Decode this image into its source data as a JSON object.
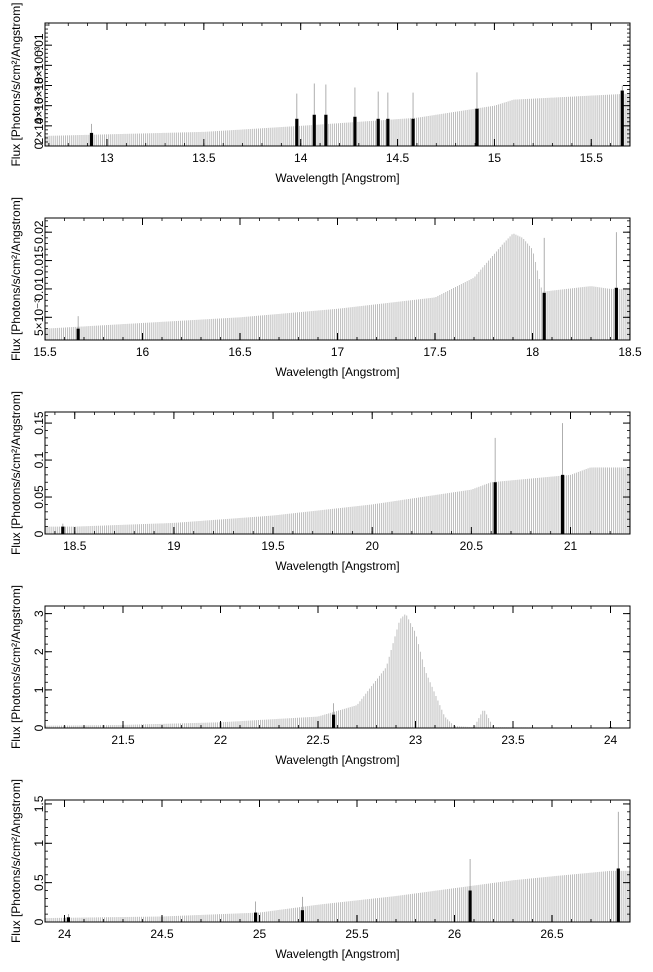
{
  "chart_data": [
    {
      "type": "bar",
      "xlabel": "Wavelength [Angstrom]",
      "ylabel": "Flux [Photons/s/cm²/Angstrom]",
      "xlim": [
        12.68,
        15.7
      ],
      "ylim": [
        0,
        0.0122
      ],
      "xticks": [
        13,
        13.5,
        14,
        14.5,
        15,
        15.5
      ],
      "yticks": [
        0,
        0.002,
        0.004,
        0.006,
        0.008,
        0.01
      ],
      "ytick_labels": [
        "0",
        "2×10⁻³",
        "4×10⁻³",
        "6×10⁻³",
        "8×10⁻³",
        "0.01"
      ],
      "continuum": [
        [
          12.68,
          0.001
        ],
        [
          13.5,
          0.0014
        ],
        [
          14.0,
          0.002
        ],
        [
          14.6,
          0.0028
        ],
        [
          15.0,
          0.004
        ],
        [
          15.1,
          0.0046
        ],
        [
          15.5,
          0.005
        ],
        [
          15.7,
          0.0052
        ]
      ],
      "lines": [
        {
          "x": 12.92,
          "value": 0.0013,
          "err": 0.0022
        },
        {
          "x": 13.98,
          "value": 0.0027,
          "err": 0.0052
        },
        {
          "x": 14.07,
          "value": 0.0031,
          "err": 0.0062
        },
        {
          "x": 14.13,
          "value": 0.0031,
          "err": 0.0061
        },
        {
          "x": 14.28,
          "value": 0.0029,
          "err": 0.0058
        },
        {
          "x": 14.4,
          "value": 0.0027,
          "err": 0.0054
        },
        {
          "x": 14.45,
          "value": 0.0027,
          "err": 0.0053
        },
        {
          "x": 14.58,
          "value": 0.0027,
          "err": 0.0053
        },
        {
          "x": 14.91,
          "value": 0.0037,
          "err": 0.0073
        },
        {
          "x": 15.66,
          "value": 0.0055,
          "err": 0.006
        }
      ]
    },
    {
      "type": "bar",
      "xlabel": "Wavelength [Angstrom]",
      "ylabel": "Flux [Photons/s/cm²/Angstrom]",
      "xlim": [
        15.5,
        18.5
      ],
      "ylim": [
        0.001,
        0.0225
      ],
      "xticks": [
        15.5,
        16,
        16.5,
        17,
        17.5,
        18,
        18.5
      ],
      "yticks": [
        0.005,
        0.01,
        0.015,
        0.02
      ],
      "ytick_labels": [
        "5×10⁻³",
        "0.01",
        "0.015",
        "0.02"
      ],
      "continuum": [
        [
          15.5,
          0.003
        ],
        [
          16.0,
          0.004
        ],
        [
          16.5,
          0.005
        ],
        [
          17.0,
          0.0065
        ],
        [
          17.5,
          0.0085
        ],
        [
          17.7,
          0.012
        ],
        [
          17.85,
          0.018
        ],
        [
          17.9,
          0.0198
        ],
        [
          17.95,
          0.019
        ],
        [
          18.0,
          0.017
        ],
        [
          18.05,
          0.0095
        ],
        [
          18.3,
          0.0105
        ],
        [
          18.4,
          0.01
        ],
        [
          18.5,
          0.01
        ]
      ],
      "lines": [
        {
          "x": 15.67,
          "value": 0.003,
          "err": 0.0052
        },
        {
          "x": 18.06,
          "value": 0.0093,
          "err": 0.019
        },
        {
          "x": 18.43,
          "value": 0.0102,
          "err": 0.02
        }
      ]
    },
    {
      "type": "bar",
      "xlabel": "Wavelength [Angstrom]",
      "ylabel": "Flux [Photons/s/cm²/Angstrom]",
      "xlim": [
        18.35,
        21.3
      ],
      "ylim": [
        0,
        0.165
      ],
      "xticks": [
        18.5,
        19,
        19.5,
        20,
        20.5,
        21
      ],
      "yticks": [
        0,
        0.05,
        0.1,
        0.15
      ],
      "ytick_labels": [
        "0",
        "0.05",
        "0.1",
        "0.15"
      ],
      "continuum": [
        [
          18.35,
          0.01
        ],
        [
          18.5,
          0.01
        ],
        [
          19.0,
          0.015
        ],
        [
          19.5,
          0.025
        ],
        [
          20.0,
          0.04
        ],
        [
          20.5,
          0.06
        ],
        [
          20.6,
          0.07
        ],
        [
          21.0,
          0.08
        ],
        [
          21.1,
          0.09
        ],
        [
          21.3,
          0.09
        ]
      ],
      "lines": [
        {
          "x": 18.44,
          "value": 0.01,
          "err": 0.014
        },
        {
          "x": 20.62,
          "value": 0.07,
          "err": 0.13
        },
        {
          "x": 20.96,
          "value": 0.08,
          "err": 0.15
        }
      ]
    },
    {
      "type": "bar",
      "xlabel": "Wavelength [Angstrom]",
      "ylabel": "Flux [Photons/s/cm²/Angstrom]",
      "xlim": [
        21.1,
        24.1
      ],
      "ylim": [
        0,
        3.2
      ],
      "xticks": [
        21.5,
        22,
        22.5,
        23,
        23.5,
        24
      ],
      "yticks": [
        0,
        1,
        2,
        3
      ],
      "ytick_labels": [
        "0",
        "1",
        "2",
        "3"
      ],
      "continuum": [
        [
          21.1,
          0.06
        ],
        [
          21.5,
          0.08
        ],
        [
          22.0,
          0.15
        ],
        [
          22.5,
          0.3
        ],
        [
          22.7,
          0.6
        ],
        [
          22.85,
          1.6
        ],
        [
          22.92,
          2.85
        ],
        [
          22.95,
          3.0
        ],
        [
          23.0,
          2.5
        ],
        [
          23.05,
          1.5
        ],
        [
          23.15,
          0.3
        ],
        [
          23.2,
          0.05
        ],
        [
          23.3,
          0.02
        ],
        [
          23.35,
          0.5
        ],
        [
          23.4,
          0.02
        ],
        [
          24.1,
          0.0
        ]
      ],
      "lines": [
        {
          "x": 22.58,
          "value": 0.35,
          "err": 0.65
        },
        {
          "x": 24.0,
          "value": 0.02,
          "err": 0.05
        }
      ]
    },
    {
      "type": "bar",
      "xlabel": "Wavelength [Angstrom]",
      "ylabel": "Flux [Photons/s/cm²/Angstrom]",
      "xlim": [
        23.9,
        26.9
      ],
      "ylim": [
        0,
        1.55
      ],
      "xticks": [
        24,
        24.5,
        25,
        25.5,
        26,
        26.5
      ],
      "yticks": [
        0,
        0.5,
        1,
        1.5
      ],
      "ytick_labels": [
        "0",
        "0.5",
        "1",
        "1.5"
      ],
      "continuum": [
        [
          23.9,
          0.05
        ],
        [
          24.5,
          0.07
        ],
        [
          25.0,
          0.12
        ],
        [
          25.3,
          0.22
        ],
        [
          25.7,
          0.33
        ],
        [
          26.0,
          0.43
        ],
        [
          26.3,
          0.53
        ],
        [
          26.5,
          0.58
        ],
        [
          26.8,
          0.65
        ],
        [
          26.9,
          0.65
        ]
      ],
      "lines": [
        {
          "x": 24.02,
          "value": 0.06,
          "err": 0.1
        },
        {
          "x": 24.98,
          "value": 0.12,
          "err": 0.26
        },
        {
          "x": 25.22,
          "value": 0.15,
          "err": 0.32
        },
        {
          "x": 26.08,
          "value": 0.4,
          "err": 0.8
        },
        {
          "x": 26.84,
          "value": 0.68,
          "err": 1.4
        }
      ]
    }
  ]
}
